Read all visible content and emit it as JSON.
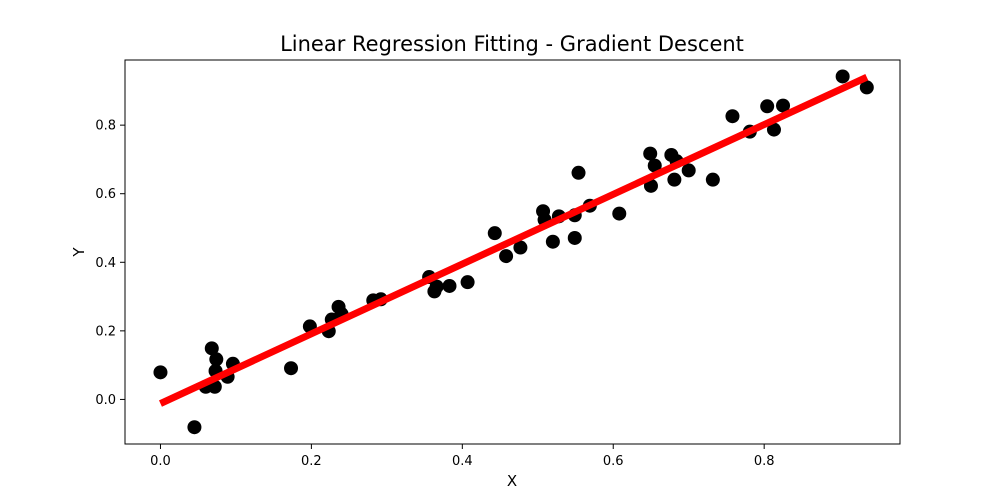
{
  "chart_data": {
    "type": "scatter",
    "title": "Linear Regression Fitting - Gradient Descent",
    "xlabel": "X",
    "ylabel": "Y",
    "xlim": [
      -0.047,
      0.98
    ],
    "ylim": [
      -0.13,
      0.99
    ],
    "x_ticks": [
      0.0,
      0.2,
      0.4,
      0.6,
      0.8
    ],
    "x_tick_labels": [
      "0.0",
      "0.2",
      "0.4",
      "0.6",
      "0.8"
    ],
    "y_ticks": [
      0.0,
      0.2,
      0.4,
      0.6,
      0.8
    ],
    "y_tick_labels": [
      "0.0",
      "0.2",
      "0.4",
      "0.6",
      "0.8"
    ],
    "grid": false,
    "legend": "none",
    "point_color": "#000000",
    "line_color": "#ff0000",
    "points": [
      [
        0.0,
        0.079
      ],
      [
        0.045,
        -0.081
      ],
      [
        0.06,
        0.037
      ],
      [
        0.068,
        0.149
      ],
      [
        0.072,
        0.037
      ],
      [
        0.073,
        0.083
      ],
      [
        0.074,
        0.117
      ],
      [
        0.089,
        0.066
      ],
      [
        0.096,
        0.104
      ],
      [
        0.173,
        0.091
      ],
      [
        0.198,
        0.213
      ],
      [
        0.223,
        0.199
      ],
      [
        0.227,
        0.233
      ],
      [
        0.236,
        0.27
      ],
      [
        0.24,
        0.249
      ],
      [
        0.282,
        0.289
      ],
      [
        0.292,
        0.292
      ],
      [
        0.356,
        0.357
      ],
      [
        0.363,
        0.315
      ],
      [
        0.366,
        0.329
      ],
      [
        0.383,
        0.331
      ],
      [
        0.407,
        0.342
      ],
      [
        0.443,
        0.485
      ],
      [
        0.458,
        0.418
      ],
      [
        0.477,
        0.443
      ],
      [
        0.507,
        0.549
      ],
      [
        0.509,
        0.524
      ],
      [
        0.52,
        0.46
      ],
      [
        0.528,
        0.534
      ],
      [
        0.549,
        0.471
      ],
      [
        0.549,
        0.537
      ],
      [
        0.554,
        0.661
      ],
      [
        0.569,
        0.565
      ],
      [
        0.608,
        0.542
      ],
      [
        0.649,
        0.717
      ],
      [
        0.65,
        0.623
      ],
      [
        0.655,
        0.682
      ],
      [
        0.677,
        0.713
      ],
      [
        0.681,
        0.641
      ],
      [
        0.684,
        0.695
      ],
      [
        0.7,
        0.668
      ],
      [
        0.732,
        0.641
      ],
      [
        0.758,
        0.826
      ],
      [
        0.781,
        0.781
      ],
      [
        0.804,
        0.855
      ],
      [
        0.813,
        0.787
      ],
      [
        0.825,
        0.857
      ],
      [
        0.904,
        0.942
      ],
      [
        0.936,
        0.91
      ]
    ],
    "fit_line": {
      "x": [
        0.0,
        0.936
      ],
      "y": [
        -0.012,
        0.94
      ]
    }
  }
}
